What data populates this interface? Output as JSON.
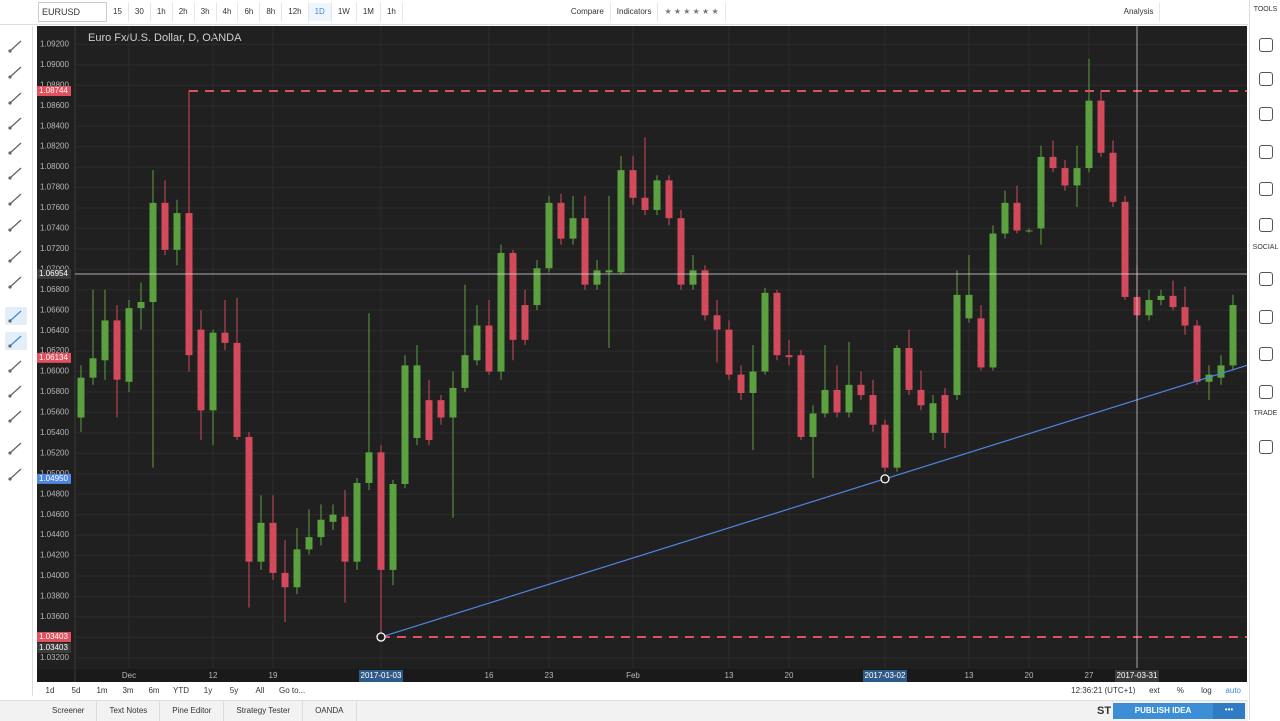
{
  "toolbar": {
    "symbol": "EURUSD",
    "intervals": [
      "15",
      "30",
      "1h",
      "2h",
      "3h",
      "4h",
      "6h",
      "8h",
      "12h",
      "1D",
      "1W",
      "1M",
      "1h"
    ],
    "buttons": [
      "Compare",
      "Indicators"
    ],
    "analysis": "Analysis"
  },
  "side_sections": [
    "TOOLS",
    "SOCIAL",
    "TRADE"
  ],
  "range_bar": {
    "ranges": [
      "1d",
      "5d",
      "1m",
      "3m",
      "6m",
      "YTD",
      "1y",
      "5y",
      "All",
      "Go to..."
    ],
    "clock": "12:36:21 (UTC+1)",
    "scale_options": [
      "ext",
      "%",
      "log",
      "auto"
    ]
  },
  "bottom_bar": {
    "tabs": [
      "Screener",
      "Text Notes",
      "Pine Editor",
      "Strategy Tester",
      "OANDA"
    ],
    "share": "ST",
    "publish": "PUBLISH IDEA"
  },
  "chart_data": {
    "type": "candlestick",
    "title": "Euro Fx/U.S. Dollar, D, OANDA",
    "up_color": "#5ca13f",
    "down_color": "#d24a5c",
    "grid": true,
    "ylim": [
      1.031,
      1.0938
    ],
    "yticks": [
      {
        "value": 1.092,
        "label": "1.09200"
      },
      {
        "value": 1.09,
        "label": "1.09000"
      },
      {
        "value": 1.088,
        "label": "1.08800"
      },
      {
        "value": 1.086,
        "label": "1.08600"
      },
      {
        "value": 1.084,
        "label": "1.08400"
      },
      {
        "value": 1.082,
        "label": "1.08200"
      },
      {
        "value": 1.08,
        "label": "1.08000"
      },
      {
        "value": 1.078,
        "label": "1.07800"
      },
      {
        "value": 1.076,
        "label": "1.07600"
      },
      {
        "value": 1.074,
        "label": "1.07400"
      },
      {
        "value": 1.072,
        "label": "1.07200"
      },
      {
        "value": 1.07,
        "label": "1.07000"
      },
      {
        "value": 1.068,
        "label": "1.06800"
      },
      {
        "value": 1.066,
        "label": "1.06600"
      },
      {
        "value": 1.064,
        "label": "1.06400"
      },
      {
        "value": 1.062,
        "label": "1.06200"
      },
      {
        "value": 1.06,
        "label": "1.06000"
      },
      {
        "value": 1.058,
        "label": "1.05800"
      },
      {
        "value": 1.056,
        "label": "1.05600"
      },
      {
        "value": 1.054,
        "label": "1.05400"
      },
      {
        "value": 1.052,
        "label": "1.05200"
      },
      {
        "value": 1.05,
        "label": "1.05000"
      },
      {
        "value": 1.048,
        "label": "1.04800"
      },
      {
        "value": 1.046,
        "label": "1.04600"
      },
      {
        "value": 1.044,
        "label": "1.04400"
      },
      {
        "value": 1.042,
        "label": "1.04200"
      },
      {
        "value": 1.04,
        "label": "1.04000"
      },
      {
        "value": 1.038,
        "label": "1.03800"
      },
      {
        "value": 1.036,
        "label": "1.03600"
      },
      {
        "value": 1.034,
        "label": "1.03400"
      },
      {
        "value": 1.032,
        "label": "1.03200"
      }
    ],
    "categories": [
      null,
      null,
      null,
      null,
      "Dec",
      null,
      null,
      null,
      null,
      null,
      null,
      "12",
      null,
      null,
      null,
      null,
      "19",
      null,
      null,
      null,
      null,
      null,
      null,
      null,
      null,
      "2017-01-03",
      null,
      null,
      null,
      null,
      null,
      null,
      null,
      null,
      "16",
      null,
      null,
      null,
      null,
      "23",
      null,
      null,
      null,
      null,
      null,
      null,
      "Feb",
      null,
      null,
      null,
      null,
      null,
      null,
      null,
      "13",
      null,
      null,
      null,
      null,
      "20",
      null,
      null,
      null,
      null,
      null,
      null,
      null,
      "2017-03-02",
      null,
      null,
      null,
      null,
      null,
      null,
      "13",
      null,
      null,
      null,
      null,
      "20",
      null,
      null,
      null,
      null,
      "27",
      null,
      null,
      null,
      "2017-03-31",
      null,
      null,
      null,
      null,
      null,
      null,
      null,
      null
    ],
    "ohlc": [
      [
        1.0555,
        1.0606,
        1.0541,
        1.0594
      ],
      [
        1.0594,
        1.068,
        1.0587,
        1.0613
      ],
      [
        1.0611,
        1.068,
        1.0592,
        1.065
      ],
      [
        1.065,
        1.0665,
        1.0555,
        1.0592
      ],
      [
        1.059,
        1.067,
        1.058,
        1.0662
      ],
      [
        1.0662,
        1.0687,
        1.0641,
        1.0668
      ],
      [
        1.0668,
        1.0797,
        1.0506,
        1.0765
      ],
      [
        1.0765,
        1.0787,
        1.0714,
        1.0719
      ],
      [
        1.0719,
        1.0768,
        1.0704,
        1.0755
      ],
      [
        1.0755,
        1.0875,
        1.06,
        1.0616
      ],
      [
        1.0641,
        1.066,
        1.0533,
        1.0562
      ],
      [
        1.0562,
        1.0641,
        1.0528,
        1.0638
      ],
      [
        1.0638,
        1.067,
        1.0621,
        1.0628
      ],
      [
        1.0628,
        1.0672,
        1.0533,
        1.0536
      ],
      [
        1.0536,
        1.0541,
        1.0369,
        1.0414
      ],
      [
        1.0414,
        1.0479,
        1.0406,
        1.0452
      ],
      [
        1.0452,
        1.0479,
        1.0396,
        1.0403
      ],
      [
        1.0403,
        1.0435,
        1.0355,
        1.0389
      ],
      [
        1.0389,
        1.0447,
        1.0382,
        1.0426
      ],
      [
        1.0426,
        1.0465,
        1.0421,
        1.0438
      ],
      [
        1.0438,
        1.047,
        1.043,
        1.0455
      ],
      [
        1.0453,
        1.047,
        1.0445,
        1.046
      ],
      [
        1.0458,
        1.0484,
        1.0374,
        1.0414
      ],
      [
        1.0414,
        1.0496,
        1.0406,
        1.0491
      ],
      [
        1.0491,
        1.0657,
        1.0484,
        1.0521
      ],
      [
        1.0521,
        1.0528,
        1.034,
        1.0406
      ],
      [
        1.0406,
        1.0494,
        1.0391,
        1.049
      ],
      [
        1.049,
        1.0616,
        1.0486,
        1.0606
      ],
      [
        1.0535,
        1.0626,
        1.0528,
        1.0606
      ],
      [
        1.0572,
        1.0592,
        1.0528,
        1.0533
      ],
      [
        1.0572,
        1.0577,
        1.0548,
        1.0555
      ],
      [
        1.0555,
        1.06,
        1.0457,
        1.0584
      ],
      [
        1.0584,
        1.0685,
        1.058,
        1.0616
      ],
      [
        1.0611,
        1.0665,
        1.0606,
        1.0645
      ],
      [
        1.0645,
        1.067,
        1.0597,
        1.06
      ],
      [
        1.06,
        1.0724,
        1.0592,
        1.0716
      ],
      [
        1.0716,
        1.0719,
        1.0611,
        1.0631
      ],
      [
        1.0665,
        1.068,
        1.0626,
        1.0631
      ],
      [
        1.0665,
        1.0709,
        1.066,
        1.0701
      ],
      [
        1.0701,
        1.0772,
        1.0697,
        1.0765
      ],
      [
        1.0765,
        1.0774,
        1.0724,
        1.073
      ],
      [
        1.073,
        1.0772,
        1.0724,
        1.075
      ],
      [
        1.075,
        1.0772,
        1.068,
        1.0685
      ],
      [
        1.0685,
        1.0709,
        1.068,
        1.0699
      ],
      [
        1.0697,
        1.0772,
        1.0623,
        1.0699
      ],
      [
        1.0697,
        1.0811,
        1.0695,
        1.0797
      ],
      [
        1.0797,
        1.0811,
        1.0763,
        1.077
      ],
      [
        1.077,
        1.0829,
        1.0753,
        1.0758
      ],
      [
        1.0758,
        1.0792,
        1.0753,
        1.0787
      ],
      [
        1.0787,
        1.0792,
        1.0743,
        1.075
      ],
      [
        1.075,
        1.0758,
        1.068,
        1.0685
      ],
      [
        1.0685,
        1.0714,
        1.068,
        1.0699
      ],
      [
        1.0699,
        1.0704,
        1.065,
        1.0655
      ],
      [
        1.0655,
        1.067,
        1.0609,
        1.0641
      ],
      [
        1.0641,
        1.065,
        1.0592,
        1.0597
      ],
      [
        1.0597,
        1.0606,
        1.0572,
        1.0579
      ],
      [
        1.0579,
        1.0626,
        1.0523,
        1.06
      ],
      [
        1.06,
        1.0682,
        1.0597,
        1.0677
      ],
      [
        1.0677,
        1.068,
        1.0611,
        1.0616
      ],
      [
        1.0616,
        1.0631,
        1.0606,
        1.0614
      ],
      [
        1.0616,
        1.0621,
        1.0533,
        1.0536
      ],
      [
        1.0536,
        1.0567,
        1.0496,
        1.0559
      ],
      [
        1.0559,
        1.0626,
        1.0555,
        1.0582
      ],
      [
        1.0582,
        1.0606,
        1.0555,
        1.056
      ],
      [
        1.056,
        1.0629,
        1.0555,
        1.0587
      ],
      [
        1.0587,
        1.06,
        1.0572,
        1.0577
      ],
      [
        1.0577,
        1.0592,
        1.0541,
        1.0548
      ],
      [
        1.0548,
        1.0553,
        1.0502,
        1.0506
      ],
      [
        1.0506,
        1.0626,
        1.0502,
        1.0623
      ],
      [
        1.0623,
        1.0641,
        1.0577,
        1.0582
      ],
      [
        1.0582,
        1.0601,
        1.0562,
        1.0567
      ],
      [
        1.054,
        1.0577,
        1.0533,
        1.0569
      ],
      [
        1.0577,
        1.0584,
        1.0525,
        1.054
      ],
      [
        1.0577,
        1.0699,
        1.0572,
        1.0675
      ],
      [
        1.0652,
        1.0714,
        1.0648,
        1.0675
      ],
      [
        1.0652,
        1.0665,
        1.0601,
        1.0604
      ],
      [
        1.0604,
        1.0743,
        1.0601,
        1.0735
      ],
      [
        1.0735,
        1.0777,
        1.073,
        1.0765
      ],
      [
        1.0765,
        1.0782,
        1.0735,
        1.0738
      ],
      [
        1.0738,
        1.074,
        1.0736,
        1.0738
      ],
      [
        1.074,
        1.0821,
        1.0724,
        1.081
      ],
      [
        1.081,
        1.0826,
        1.0795,
        1.0799
      ],
      [
        1.0799,
        1.0807,
        1.0777,
        1.0782
      ],
      [
        1.0782,
        1.0821,
        1.0761,
        1.0799
      ],
      [
        1.0799,
        1.0906,
        1.0795,
        1.0865
      ],
      [
        1.0865,
        1.0875,
        1.081,
        1.0814
      ],
      [
        1.0814,
        1.0826,
        1.0761,
        1.0766
      ],
      [
        1.0766,
        1.0772,
        1.067,
        1.0673
      ],
      [
        1.0673,
        1.0704,
        1.065,
        1.0655
      ],
      [
        1.0655,
        1.068,
        1.065,
        1.067
      ],
      [
        1.067,
        1.068,
        1.0665,
        1.0674
      ],
      [
        1.0674,
        1.0689,
        1.066,
        1.0663
      ],
      [
        1.0663,
        1.0683,
        1.0636,
        1.0645
      ],
      [
        1.0645,
        1.065,
        1.0587,
        1.059
      ],
      [
        1.059,
        1.0606,
        1.0572,
        1.0597
      ],
      [
        1.0594,
        1.0616,
        1.0587,
        1.0606
      ],
      [
        1.0606,
        1.0675,
        1.0601,
        1.0665
      ]
    ],
    "levels": [
      {
        "value": 1.08744,
        "label": "1.08744",
        "color": "#e0505e"
      },
      {
        "value": 1.03403,
        "label": "1.03403",
        "color": "#e0505e"
      }
    ],
    "last_price": {
      "value": 1.06134,
      "label": "1.06134",
      "color": "#e0505e"
    },
    "trendline": {
      "color": "#4f86e0",
      "points": [
        {
          "x": "2017-01-03",
          "value": 1.03403,
          "label": "1.03403"
        },
        {
          "x": "2017-03-02",
          "value": 1.0495,
          "label": "1.04950"
        }
      ]
    },
    "crosshair": {
      "x": "2017-03-31",
      "value": 1.06954,
      "label": "1.06954"
    }
  }
}
